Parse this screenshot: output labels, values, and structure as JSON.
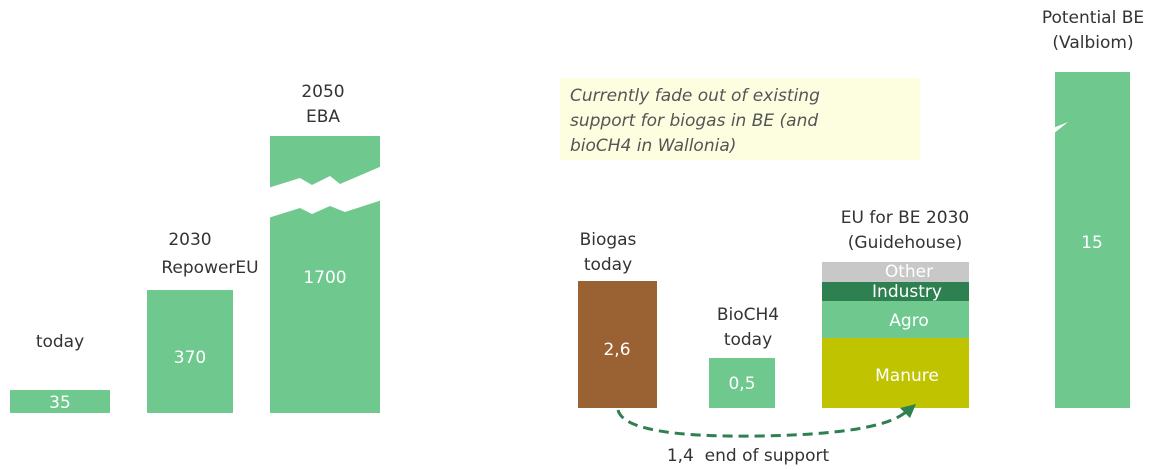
{
  "left_bars": [
    {
      "label": [
        "today"
      ],
      "value": "35"
    },
    {
      "label": [
        "2030",
        "RepowerEU"
      ],
      "value": "370"
    },
    {
      "label": [
        "2050",
        "EBA"
      ],
      "value": "1700"
    }
  ],
  "note": [
    "Currently fade out of existing",
    "support for biogas in BE (and",
    "bioCH4 in Wallonia)"
  ],
  "right_bars": [
    {
      "label": [
        "Biogas",
        "today"
      ],
      "value": "2,6"
    },
    {
      "label": [
        "BioCH4",
        "today"
      ],
      "value": "0,5"
    },
    {
      "label": [
        "EU for BE 2030",
        "(Guidehouse)"
      ],
      "segments": [
        "Other",
        "Industry",
        "Agro",
        "Manure"
      ]
    },
    {
      "label": [
        "Potential BE",
        "(Valbiom)"
      ],
      "value": "15"
    }
  ],
  "arrow_label": "1,4  end of support"
}
